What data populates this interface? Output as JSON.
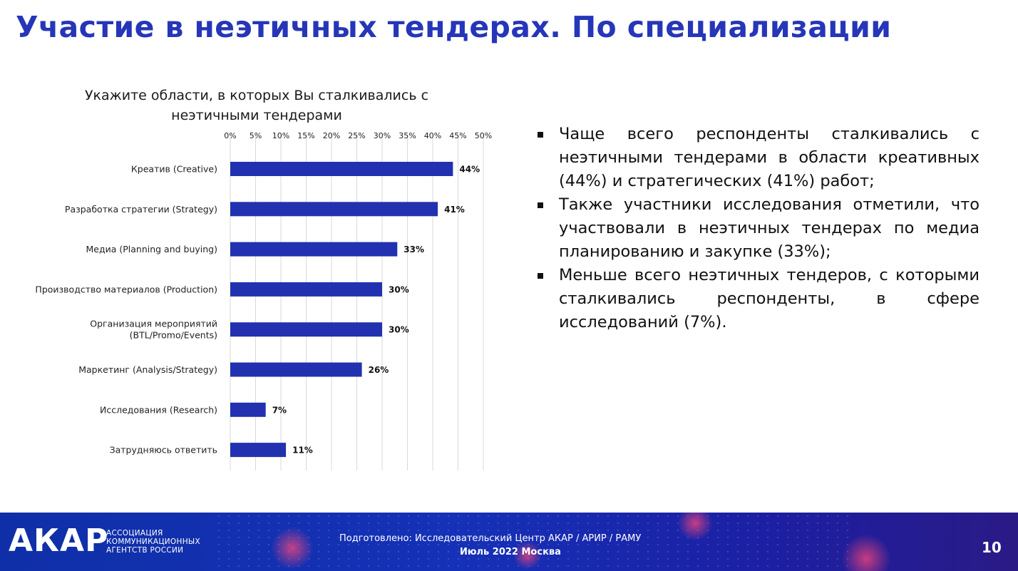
{
  "title": "Участие в неэтичных тендерах. По специализации",
  "chart_data": {
    "type": "bar",
    "orientation": "horizontal",
    "title": "Укажите области, в которых Вы сталкивались с неэтичными тендерами",
    "title_lines": [
      "Укажите области, в которых Вы сталкивались с",
      "неэтичными тендерами"
    ],
    "categories": [
      "Креатив (Creative)",
      "Разработка стратегии (Strategy)",
      "Медиа (Planning and buying)",
      "Производство материалов (Production)",
      "Организация мероприятий (BTL/Promo/Events)",
      "Маркетинг (Analysis/Strategy)",
      "Исследования (Research)",
      "Затрудняюсь ответить"
    ],
    "category_lines": [
      [
        "Креатив (Creative)"
      ],
      [
        "Разработка стратегии (Strategy)"
      ],
      [
        "Медиа (Planning and buying)"
      ],
      [
        "Производство материалов (Production)"
      ],
      [
        "Организация мероприятий",
        "(BTL/Promo/Events)"
      ],
      [
        "Маркетинг (Analysis/Strategy)"
      ],
      [
        "Исследования (Research)"
      ],
      [
        "Затрудняюсь ответить"
      ]
    ],
    "values": [
      44,
      41,
      33,
      30,
      30,
      26,
      7,
      11
    ],
    "value_labels": [
      "44%",
      "41%",
      "33%",
      "30%",
      "30%",
      "26%",
      "7%",
      "11%"
    ],
    "xlim": [
      0,
      50
    ],
    "ticks": [
      "0%",
      "5%",
      "10%",
      "15%",
      "20%",
      "25%",
      "30%",
      "35%",
      "40%",
      "45%",
      "50%"
    ],
    "axis_position": "top",
    "grid": true,
    "bar_color": "#2231b0",
    "grid_color": "#d9d9d9"
  },
  "bullets": [
    "Чаще всего респонденты сталкивались с неэтичными тендерами в области креативных (44%) и стратегических (41%) работ;",
    "Также участники исследования отметили, что участвовали в неэтичных тендерах по медиа планированию и закупке (33%);",
    "Меньше всего неэтичных тендеров, с которыми сталкивались респонденты, в сфере исследований (7%)."
  ],
  "footer": {
    "logo": "АКАР",
    "logo_sub": [
      "АССОЦИАЦИЯ",
      "КОММУНИКАЦИОННЫХ",
      "АГЕНТСТВ РОССИИ"
    ],
    "prepared": "Подготовлено: Исследовательский Центр АКАР / АРИР / РАМУ",
    "date": "Июль 2022 Москва",
    "page": "10"
  },
  "colors": {
    "title": "#2636b8",
    "footer": "#1531b7"
  }
}
